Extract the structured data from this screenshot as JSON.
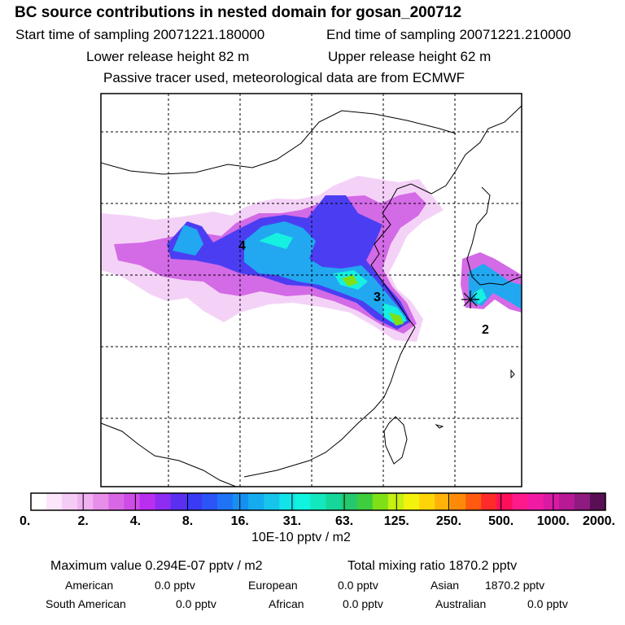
{
  "header": {
    "title": "BC  source contributions in nested domain for gosan_200712",
    "start_label": "Start time of sampling 20071221.180000",
    "end_label": "End time of sampling 20071221.210000",
    "lower_label": "Lower release height   82 m",
    "upper_label": "Upper release height   62 m",
    "note": "Passive tracer used, meteorological data are from ECMWF"
  },
  "map": {
    "markers": [
      "4",
      "3",
      "2"
    ],
    "release_site_icon": "asterisk-icon"
  },
  "colorbar": {
    "ticks": [
      "0.",
      "2.",
      "4.",
      "8.",
      "16.",
      "31.",
      "63.",
      "125.",
      "250.",
      "500.",
      "1000.",
      "2000."
    ],
    "colors": [
      "#ffffff",
      "#fbe6fb",
      "#f5ccf5",
      "#efb1f1",
      "#e68ee9",
      "#d967e5",
      "#cf4ce8",
      "#b92ff0",
      "#8f2cf2",
      "#5a2ff0",
      "#3b3af5",
      "#2b55f7",
      "#1e74f5",
      "#1590f2",
      "#15acef",
      "#16c4ec",
      "#12e3e8",
      "#0ff3df",
      "#12e7bd",
      "#17d699",
      "#25c76f",
      "#3dcd3d",
      "#7fe018",
      "#c6ef12",
      "#f2f20c",
      "#ffd50a",
      "#ffb20a",
      "#ff8a0a",
      "#ff5a10",
      "#ff2a2a",
      "#ff0f5a",
      "#ff1a8c",
      "#f01aa5",
      "#d91aa5",
      "#b81a95",
      "#8f1a80",
      "#5a0f55"
    ],
    "unit": "10E-10 pptv / m2"
  },
  "summary": {
    "max_label": "Maximum value  0.294E-07 pptv / m2",
    "total_label": "Total mixing ratio     1870.2 pptv",
    "american_label": "American",
    "american_value": "0.0 pptv",
    "european_label": "European",
    "european_value": "0.0 pptv",
    "asian_label": "Asian",
    "asian_value": "1870.2 pptv",
    "south_american_label": "South American",
    "south_american_value": "0.0 pptv",
    "african_label": "African",
    "african_value": "0.0 pptv",
    "australian_label": "Australian",
    "australian_value": "0.0 pptv"
  }
}
